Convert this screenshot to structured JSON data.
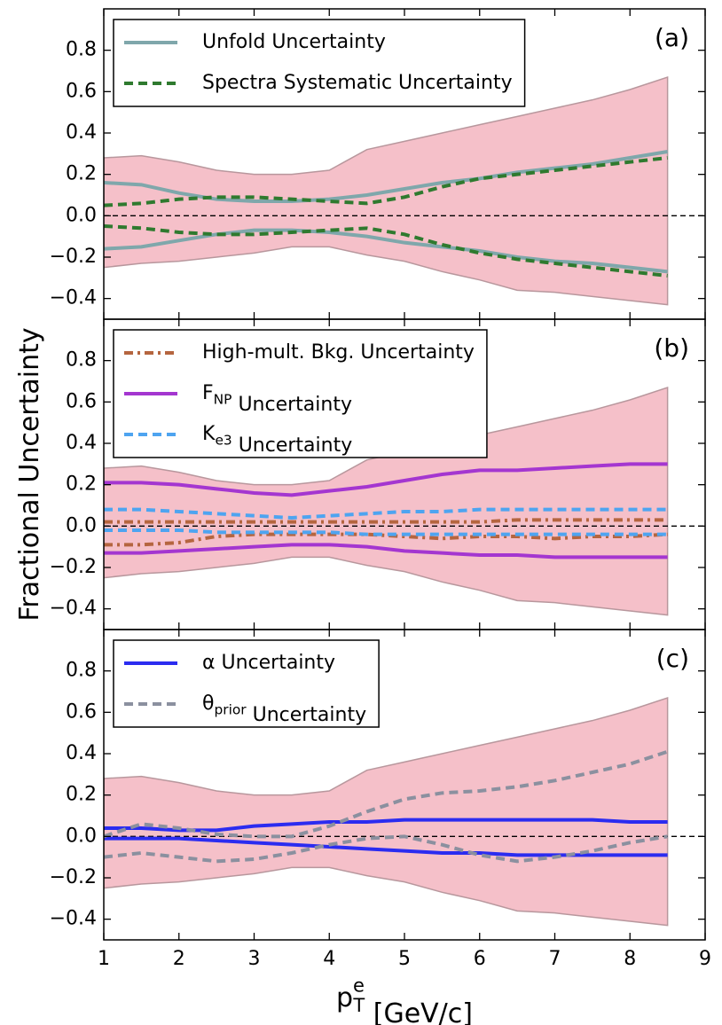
{
  "chart_data": [
    {
      "type": "line",
      "label": "(a)",
      "x": [
        1,
        1.5,
        2,
        2.5,
        3,
        3.5,
        4,
        4.5,
        5,
        5.5,
        6,
        6.5,
        7,
        7.5,
        8,
        8.5
      ],
      "xlim": [
        1,
        9
      ],
      "ylim": [
        -0.5,
        1.0
      ],
      "yticks": [
        {
          "value": -0.4,
          "label": "−0.4"
        },
        {
          "value": -0.2,
          "label": "−0.2"
        },
        {
          "value": 0,
          "label": "0.0"
        },
        0.2,
        0.4,
        0.6,
        0.8
      ],
      "hline": 0,
      "legend": "upper left",
      "band": {
        "color": "#f5c0c9",
        "edge": "#b8979d",
        "values": [
          0.28,
          0.29,
          0.26,
          0.22,
          0.2,
          0.2,
          0.22,
          0.32,
          0.36,
          0.4,
          0.44,
          0.48,
          0.52,
          0.56,
          0.61,
          0.67
        ],
        "lower": [
          -0.25,
          -0.23,
          -0.22,
          -0.2,
          -0.18,
          -0.15,
          -0.15,
          -0.19,
          -0.22,
          -0.27,
          -0.31,
          -0.36,
          -0.37,
          -0.39,
          -0.41,
          -0.43
        ]
      },
      "series": [
        {
          "name": "Unfold Uncertainty",
          "color": "#7fa7ab",
          "dash": "solid",
          "values": [
            0.16,
            0.15,
            0.11,
            0.08,
            0.07,
            0.07,
            0.08,
            0.1,
            0.13,
            0.16,
            0.18,
            0.21,
            0.23,
            0.25,
            0.28,
            0.31
          ],
          "lower": [
            -0.16,
            -0.15,
            -0.12,
            -0.09,
            -0.07,
            -0.07,
            -0.08,
            -0.1,
            -0.13,
            -0.15,
            -0.17,
            -0.2,
            -0.22,
            -0.23,
            -0.25,
            -0.27
          ]
        },
        {
          "name": "Spectra Systematic Uncertainty",
          "color": "#2f7a2f",
          "dash": "dashed",
          "values": [
            0.05,
            0.06,
            0.08,
            0.09,
            0.09,
            0.08,
            0.07,
            0.06,
            0.09,
            0.14,
            0.18,
            0.2,
            0.22,
            0.24,
            0.26,
            0.28
          ],
          "lower": [
            -0.05,
            -0.06,
            -0.08,
            -0.09,
            -0.09,
            -0.08,
            -0.07,
            -0.06,
            -0.09,
            -0.14,
            -0.18,
            -0.21,
            -0.23,
            -0.25,
            -0.27,
            -0.29
          ]
        }
      ]
    },
    {
      "type": "line",
      "label": "(b)",
      "ylabel": "Fractional Uncertainty",
      "x": [
        1,
        1.5,
        2,
        2.5,
        3,
        3.5,
        4,
        4.5,
        5,
        5.5,
        6,
        6.5,
        7,
        7.5,
        8,
        8.5
      ],
      "xlim": [
        1,
        9
      ],
      "ylim": [
        -0.5,
        1.0
      ],
      "yticks": [
        {
          "value": -0.4,
          "label": "−0.4"
        },
        {
          "value": -0.2,
          "label": "−0.2"
        },
        {
          "value": 0,
          "label": "0.0"
        },
        0.2,
        0.4,
        0.6,
        0.8
      ],
      "hline": 0,
      "legend": "upper left",
      "band": {
        "color": "#f5c0c9",
        "edge": "#b8979d",
        "values": [
          0.28,
          0.29,
          0.26,
          0.22,
          0.2,
          0.2,
          0.22,
          0.32,
          0.36,
          0.4,
          0.44,
          0.48,
          0.52,
          0.56,
          0.61,
          0.67
        ],
        "lower": [
          -0.25,
          -0.23,
          -0.22,
          -0.2,
          -0.18,
          -0.15,
          -0.15,
          -0.19,
          -0.22,
          -0.27,
          -0.31,
          -0.36,
          -0.37,
          -0.39,
          -0.41,
          -0.43
        ]
      },
      "series": [
        {
          "name": "High-mult. Bkg. Uncertainty",
          "color": "#b5653f",
          "dash": "dashdot",
          "values": [
            0.02,
            0.02,
            0.02,
            0.02,
            0.02,
            0.02,
            0.02,
            0.02,
            0.02,
            0.02,
            0.02,
            0.03,
            0.03,
            0.03,
            0.03,
            0.03
          ],
          "lower": [
            -0.09,
            -0.09,
            -0.08,
            -0.05,
            -0.04,
            -0.04,
            -0.04,
            -0.04,
            -0.05,
            -0.06,
            -0.05,
            -0.05,
            -0.06,
            -0.05,
            -0.05,
            -0.04
          ]
        },
        {
          "name": "F_{NP} Uncertainty",
          "color": "#a436d0",
          "dash": "solid",
          "values": [
            0.21,
            0.21,
            0.2,
            0.18,
            0.16,
            0.15,
            0.17,
            0.19,
            0.22,
            0.25,
            0.27,
            0.27,
            0.28,
            0.29,
            0.3,
            0.3
          ],
          "lower": [
            -0.13,
            -0.13,
            -0.12,
            -0.11,
            -0.1,
            -0.09,
            -0.09,
            -0.1,
            -0.12,
            -0.13,
            -0.14,
            -0.14,
            -0.15,
            -0.15,
            -0.15,
            -0.15
          ]
        },
        {
          "name": "K_{e3} Uncertainty",
          "color": "#4ea4f0",
          "dash": "dashed",
          "values": [
            0.08,
            0.08,
            0.07,
            0.06,
            0.05,
            0.04,
            0.05,
            0.06,
            0.07,
            0.07,
            0.08,
            0.08,
            0.08,
            0.08,
            0.08,
            0.08
          ],
          "lower": [
            -0.02,
            -0.02,
            -0.02,
            -0.03,
            -0.03,
            -0.03,
            -0.03,
            -0.04,
            -0.04,
            -0.04,
            -0.04,
            -0.04,
            -0.04,
            -0.04,
            -0.04,
            -0.04
          ]
        }
      ]
    },
    {
      "type": "line",
      "label": "(c)",
      "xlabel": "p^{e}_{T}  [GeV/c]",
      "x": [
        1,
        1.5,
        2,
        2.5,
        3,
        3.5,
        4,
        4.5,
        5,
        5.5,
        6,
        6.5,
        7,
        7.5,
        8,
        8.5
      ],
      "xlim": [
        1,
        9
      ],
      "xticks": [
        1,
        2,
        3,
        4,
        5,
        6,
        7,
        8,
        9
      ],
      "ylim": [
        -0.5,
        1.0
      ],
      "yticks": [
        {
          "value": -0.4,
          "label": "−0.4"
        },
        {
          "value": -0.2,
          "label": "−0.2"
        },
        {
          "value": 0,
          "label": "0.0"
        },
        0.2,
        0.4,
        0.6,
        0.8
      ],
      "hline": 0,
      "legend": "upper left",
      "band": {
        "color": "#f5c0c9",
        "edge": "#b8979d",
        "values": [
          0.28,
          0.29,
          0.26,
          0.22,
          0.2,
          0.2,
          0.22,
          0.32,
          0.36,
          0.4,
          0.44,
          0.48,
          0.52,
          0.56,
          0.61,
          0.67
        ],
        "lower": [
          -0.25,
          -0.23,
          -0.22,
          -0.2,
          -0.18,
          -0.15,
          -0.15,
          -0.19,
          -0.22,
          -0.27,
          -0.31,
          -0.36,
          -0.37,
          -0.39,
          -0.41,
          -0.43
        ]
      },
      "series": [
        {
          "name": "α Uncertainty",
          "color": "#2b2cf0",
          "dash": "solid",
          "values": [
            0.04,
            0.04,
            0.03,
            0.03,
            0.05,
            0.06,
            0.07,
            0.07,
            0.08,
            0.08,
            0.08,
            0.08,
            0.08,
            0.08,
            0.07,
            0.07
          ],
          "lower": [
            -0.01,
            -0.01,
            -0.01,
            -0.02,
            -0.03,
            -0.04,
            -0.05,
            -0.06,
            -0.07,
            -0.08,
            -0.08,
            -0.09,
            -0.09,
            -0.09,
            -0.09,
            -0.09
          ]
        },
        {
          "name": "θ_{prior} Uncertainty",
          "color": "#8b909f",
          "dash": "dashed",
          "values": [
            0.0,
            0.06,
            0.04,
            0.01,
            0.0,
            0.0,
            0.05,
            0.12,
            0.18,
            0.21,
            0.22,
            0.24,
            0.27,
            0.31,
            0.35,
            0.41
          ],
          "lower": [
            -0.1,
            -0.08,
            -0.1,
            -0.12,
            -0.11,
            -0.08,
            -0.04,
            -0.01,
            0.0,
            -0.04,
            -0.09,
            -0.12,
            -0.1,
            -0.07,
            -0.03,
            0.0
          ]
        }
      ]
    }
  ]
}
